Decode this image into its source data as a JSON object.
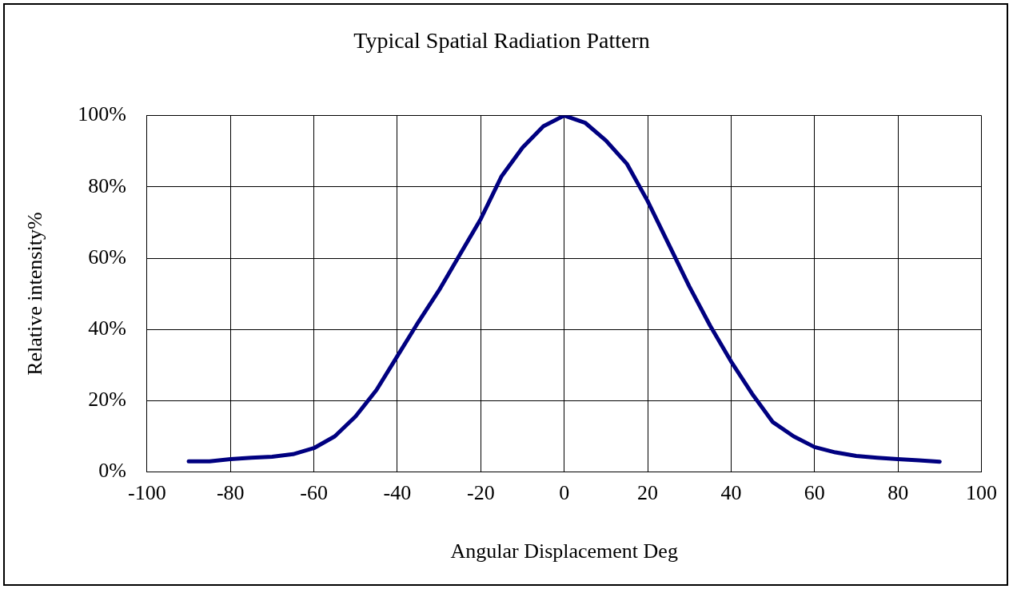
{
  "chart_data": {
    "type": "line",
    "title": "Typical Spatial Radiation Pattern",
    "xlabel": "Angular Displacement Deg",
    "ylabel": "Relative intensity%",
    "x": [
      -90,
      -85,
      -80,
      -75,
      -70,
      -65,
      -60,
      -55,
      -50,
      -45,
      -40,
      -35,
      -30,
      -25,
      -20,
      -15,
      -10,
      -5,
      0,
      5,
      10,
      15,
      20,
      25,
      30,
      35,
      40,
      45,
      50,
      55,
      60,
      65,
      70,
      75,
      80,
      85,
      90
    ],
    "series": [
      {
        "color": "#000080",
        "values": [
          3,
          3,
          3.6,
          4,
          4.3,
          5,
          6.7,
          10,
          15.6,
          23,
          32.5,
          42,
          51,
          61,
          71,
          83,
          91,
          97,
          100,
          98,
          93,
          86.5,
          76,
          64,
          52,
          41,
          31,
          22,
          14,
          10,
          7,
          5.5,
          4.5,
          4,
          3.6,
          3.3,
          2.9
        ]
      }
    ],
    "xlim": [
      -100,
      100
    ],
    "xticks": [
      -100,
      -80,
      -60,
      -40,
      -20,
      0,
      20,
      40,
      60,
      80,
      100
    ],
    "ylim": [
      0,
      100
    ],
    "yticks": [
      {
        "value": 0,
        "label": "0%"
      },
      {
        "value": 20,
        "label": "20%"
      },
      {
        "value": 40,
        "label": "40%"
      },
      {
        "value": 60,
        "label": "60%"
      },
      {
        "value": 80,
        "label": "80%"
      },
      {
        "value": 100,
        "label": "100%"
      }
    ],
    "grid": true,
    "legend": false,
    "marker": "none",
    "line_style": "solid"
  }
}
